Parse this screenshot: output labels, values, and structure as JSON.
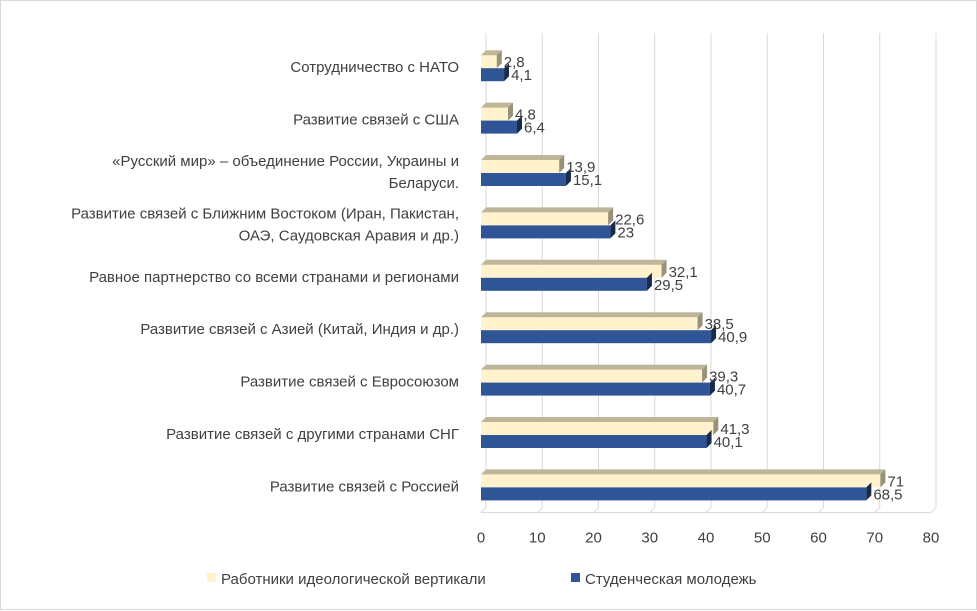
{
  "chart_data": {
    "type": "bar",
    "orientation": "horizontal",
    "style": "3d-clustered",
    "categories": [
      [
        "Развитие связей с Россией"
      ],
      [
        "Развитие связей с другими странами СНГ"
      ],
      [
        "Развитие связей с Евросоюзом"
      ],
      [
        "Развитие связей с Азией (Китай, Индия и др.)"
      ],
      [
        "Равное партнерство со всеми странами и регионами"
      ],
      [
        "Развитие связей с Ближним Востоком (Иран, Пакистан,",
        "ОАЭ, Саудовская Аравия и др.)"
      ],
      [
        "«Русский мир» – объединение России, Украины и",
        "Беларуси."
      ],
      [
        "Развитие связей с США"
      ],
      [
        "Сотрудничество с НАТО"
      ]
    ],
    "series": [
      {
        "name": "Работники идеологической вертикали",
        "color": "#FFF2CC",
        "values": [
          71,
          41.3,
          39.3,
          38.5,
          32.1,
          22.6,
          13.9,
          4.8,
          2.8
        ],
        "labels": [
          "71",
          "41,3",
          "39,3",
          "38,5",
          "32,1",
          "22,6",
          "13,9",
          "4,8",
          "2,8"
        ]
      },
      {
        "name": "Студенческая молодежь",
        "color": "#2F5597",
        "values": [
          68.5,
          40.1,
          40.7,
          40.9,
          29.5,
          23,
          15.1,
          6.4,
          4.1
        ],
        "labels": [
          "68,5",
          "40,1",
          "40,7",
          "40,9",
          "29,5",
          "23",
          "15,1",
          "6,4",
          "4,1"
        ]
      }
    ],
    "xlim": [
      0,
      80
    ],
    "ticks": [
      "0",
      "10",
      "20",
      "30",
      "40",
      "50",
      "60",
      "70",
      "80"
    ],
    "grid": true,
    "legend_position": "bottom"
  }
}
